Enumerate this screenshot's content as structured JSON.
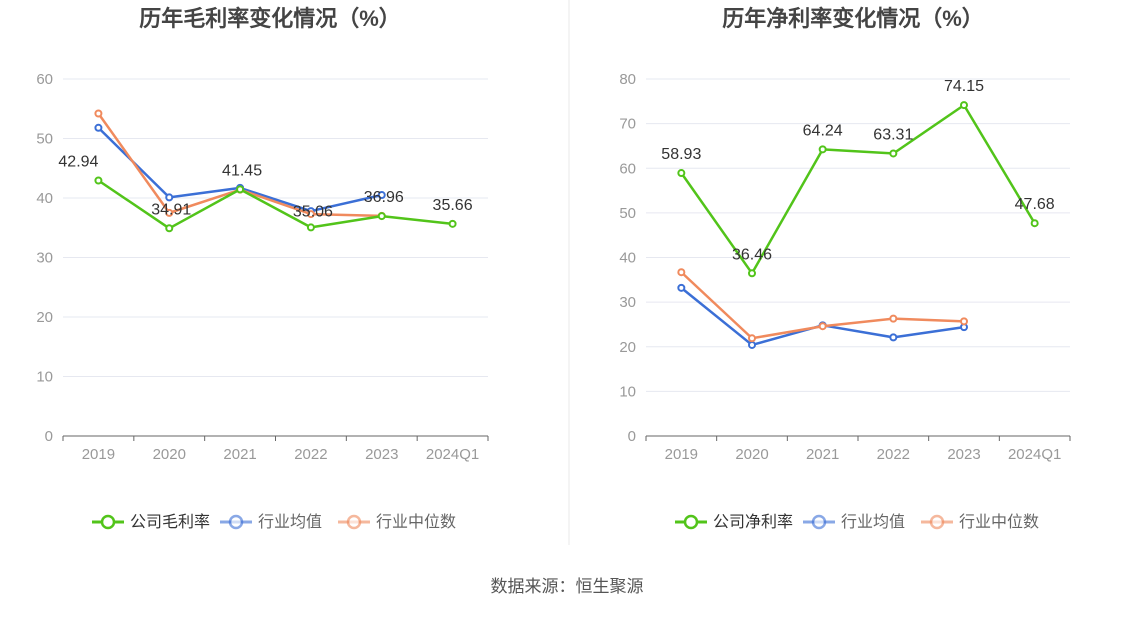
{
  "source_text": "数据来源：恒生聚源",
  "colors": {
    "company": "#52c41a",
    "avg": "#3b6fd6",
    "median": "#f08a5d",
    "axis_text": "#999999",
    "grid": "#e6e8f0",
    "title": "#444444",
    "divider": "#e8e8e8"
  },
  "chart_data": [
    {
      "type": "line",
      "title": "历年毛利率变化情况（%）",
      "categories": [
        "2019",
        "2020",
        "2021",
        "2022",
        "2023",
        "2024Q1"
      ],
      "ylim": [
        0,
        60
      ],
      "yticks": [
        0,
        10,
        20,
        30,
        40,
        50,
        60
      ],
      "grid": true,
      "legend_position": "bottom",
      "series": [
        {
          "name": "公司毛利率",
          "key": "company",
          "values": [
            42.94,
            34.91,
            41.45,
            35.06,
            36.96,
            35.66
          ],
          "labels": [
            "42.94",
            "34.91",
            "41.45",
            "35.06",
            "36.96",
            "35.66"
          ]
        },
        {
          "name": "行业均值",
          "key": "avg",
          "values": [
            51.8,
            40.1,
            41.7,
            37.8,
            40.5,
            null
          ]
        },
        {
          "name": "行业中位数",
          "key": "median",
          "values": [
            54.2,
            37.5,
            41.4,
            37.3,
            37.0,
            null
          ]
        }
      ]
    },
    {
      "type": "line",
      "title": "历年净利率变化情况（%）",
      "categories": [
        "2019",
        "2020",
        "2021",
        "2022",
        "2023",
        "2024Q1"
      ],
      "ylim": [
        0,
        80
      ],
      "yticks": [
        0,
        10,
        20,
        30,
        40,
        50,
        60,
        70,
        80
      ],
      "grid": true,
      "legend_position": "bottom",
      "series": [
        {
          "name": "公司净利率",
          "key": "company",
          "values": [
            58.93,
            36.46,
            64.24,
            63.31,
            74.15,
            47.68
          ],
          "labels": [
            "58.93",
            "36.46",
            "64.24",
            "63.31",
            "74.15",
            "47.68"
          ]
        },
        {
          "name": "行业均值",
          "key": "avg",
          "values": [
            33.2,
            20.4,
            24.8,
            22.1,
            24.4,
            null
          ]
        },
        {
          "name": "行业中位数",
          "key": "median",
          "values": [
            36.7,
            21.9,
            24.6,
            26.3,
            25.7,
            null
          ]
        }
      ]
    }
  ]
}
